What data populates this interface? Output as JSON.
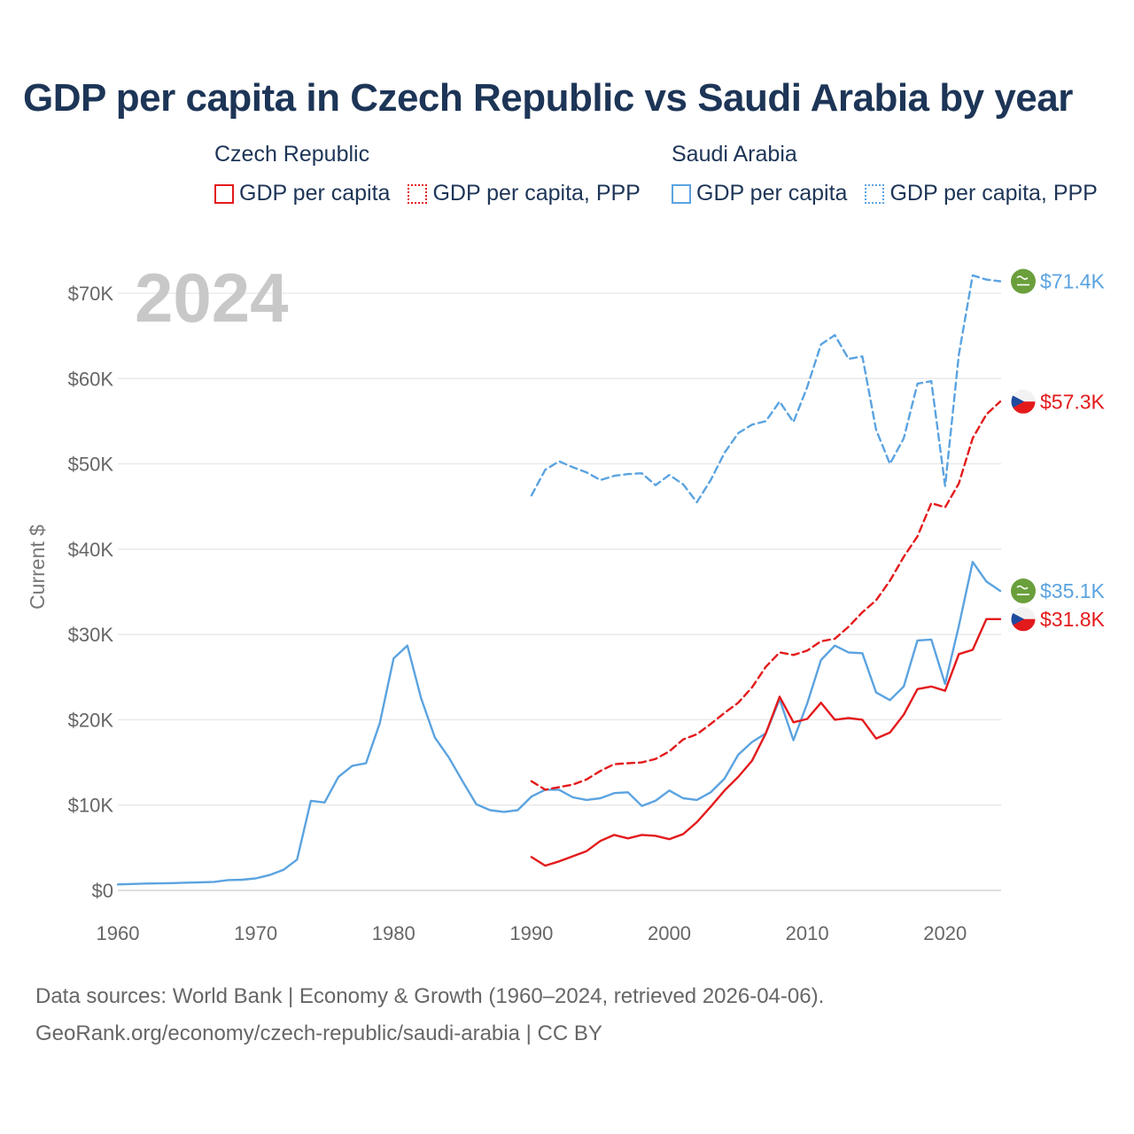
{
  "title": "GDP per capita in Czech Republic vs Saudi Arabia by year",
  "legend": {
    "groups": [
      {
        "title": "Czech Republic",
        "color": "#e31a1c",
        "items": [
          "GDP per capita",
          "GDP per capita, PPP"
        ]
      },
      {
        "title": "Saudi Arabia",
        "color": "#5ba3e0",
        "items": [
          "GDP per capita",
          "GDP per capita, PPP"
        ]
      }
    ]
  },
  "year_overlay": "2024",
  "sources": {
    "line1": "Data sources: World Bank | Economy & Growth (1960–2024, retrieved 2026-04-06).",
    "line2": "GeoRank.org/economy/czech-republic/saudi-arabia | CC BY"
  },
  "chart_data": {
    "type": "line",
    "title": "GDP per capita in Czech Republic vs Saudi Arabia by year",
    "xlabel": "",
    "ylabel": "Current $",
    "xlim": [
      1960,
      2024
    ],
    "ylim": [
      0,
      70000
    ],
    "grid": true,
    "x_ticks": [
      1960,
      1970,
      1980,
      1990,
      2000,
      2010,
      2020
    ],
    "x_tick_labels": [
      "1960",
      "1970",
      "1980",
      "1990",
      "2000",
      "2010",
      "2020"
    ],
    "y_ticks": [
      0,
      10000,
      20000,
      30000,
      40000,
      50000,
      60000,
      70000
    ],
    "y_tick_labels": [
      "$0",
      "$10K",
      "$20K",
      "$30K",
      "$40K",
      "$50K",
      "$60K",
      "$70K"
    ],
    "series": [
      {
        "name": "Saudi Arabia GDP per capita",
        "color": "#5ba3e0",
        "dash": "solid",
        "end_label": "$35.1K",
        "flag": "saudi-arabia",
        "x": [
          1960,
          1961,
          1962,
          1963,
          1964,
          1965,
          1966,
          1967,
          1968,
          1969,
          1970,
          1971,
          1972,
          1973,
          1974,
          1975,
          1976,
          1977,
          1978,
          1979,
          1980,
          1981,
          1982,
          1983,
          1984,
          1985,
          1986,
          1987,
          1988,
          1989,
          1990,
          1991,
          1992,
          1993,
          1994,
          1995,
          1996,
          1997,
          1998,
          1999,
          2000,
          2001,
          2002,
          2003,
          2004,
          2005,
          2006,
          2007,
          2008,
          2009,
          2010,
          2011,
          2012,
          2013,
          2014,
          2015,
          2016,
          2017,
          2018,
          2019,
          2020,
          2021,
          2022,
          2023,
          2024
        ],
        "values": [
          700,
          750,
          800,
          820,
          850,
          900,
          950,
          1000,
          1200,
          1250,
          1400,
          1800,
          2400,
          3600,
          10500,
          10300,
          13300,
          14600,
          14900,
          19600,
          27200,
          28700,
          22500,
          17900,
          15600,
          12800,
          10100,
          9400,
          9200,
          9400,
          11000,
          11800,
          11800,
          10900,
          10600,
          10800,
          11400,
          11500,
          9900,
          10500,
          11700,
          10800,
          10600,
          11500,
          13100,
          15900,
          17400,
          18400,
          22400,
          17600,
          21900,
          27000,
          28700,
          27900,
          27800,
          23200,
          22300,
          23900,
          29300,
          29400,
          24200,
          31000,
          38500,
          36200,
          35100
        ]
      },
      {
        "name": "Saudi Arabia GDP per capita, PPP",
        "color": "#5ba3e0",
        "dash": "dashed",
        "end_label": "$71.4K",
        "flag": "saudi-arabia",
        "x": [
          1990,
          1991,
          1992,
          1993,
          1994,
          1995,
          1996,
          1997,
          1998,
          1999,
          2000,
          2001,
          2002,
          2003,
          2004,
          2005,
          2006,
          2007,
          2008,
          2009,
          2010,
          2011,
          2012,
          2013,
          2014,
          2015,
          2016,
          2017,
          2018,
          2019,
          2020,
          2021,
          2022,
          2023,
          2024
        ],
        "values": [
          46300,
          49300,
          50300,
          49600,
          49000,
          48100,
          48600,
          48800,
          48900,
          47500,
          48700,
          47600,
          45500,
          48100,
          51300,
          53600,
          54600,
          55000,
          57300,
          54900,
          59000,
          64000,
          65100,
          62300,
          62600,
          54000,
          50000,
          53000,
          59400,
          59700,
          47400,
          62800,
          72100,
          71600,
          71400
        ]
      },
      {
        "name": "Czech Republic GDP per capita",
        "color": "#e31a1c",
        "dash": "solid",
        "end_label": "$31.8K",
        "flag": "czech-republic",
        "x": [
          1990,
          1991,
          1992,
          1993,
          1994,
          1995,
          1996,
          1997,
          1998,
          1999,
          2000,
          2001,
          2002,
          2003,
          2004,
          2005,
          2006,
          2007,
          2008,
          2009,
          2010,
          2011,
          2012,
          2013,
          2014,
          2015,
          2016,
          2017,
          2018,
          2019,
          2020,
          2021,
          2022,
          2023,
          2024
        ],
        "values": [
          3900,
          2900,
          3400,
          4000,
          4600,
          5800,
          6500,
          6100,
          6500,
          6400,
          6000,
          6600,
          8000,
          9800,
          11700,
          13300,
          15200,
          18400,
          22700,
          19700,
          20100,
          22000,
          20000,
          20200,
          20000,
          17800,
          18500,
          20600,
          23600,
          23900,
          23400,
          27700,
          28200,
          31800,
          31800
        ]
      },
      {
        "name": "Czech Republic GDP per capita, PPP",
        "color": "#e31a1c",
        "dash": "dashed",
        "end_label": "$57.3K",
        "flag": "czech-republic",
        "x": [
          1990,
          1991,
          1992,
          1993,
          1994,
          1995,
          1996,
          1997,
          1998,
          1999,
          2000,
          2001,
          2002,
          2003,
          2004,
          2005,
          2006,
          2007,
          2008,
          2009,
          2010,
          2011,
          2012,
          2013,
          2014,
          2015,
          2016,
          2017,
          2018,
          2019,
          2020,
          2021,
          2022,
          2023,
          2024
        ],
        "values": [
          12800,
          11800,
          12100,
          12400,
          13000,
          14000,
          14800,
          14900,
          15000,
          15400,
          16300,
          17700,
          18300,
          19500,
          20800,
          22000,
          23800,
          26200,
          27900,
          27600,
          28100,
          29200,
          29500,
          30900,
          32600,
          34000,
          36300,
          39100,
          41500,
          45400,
          44900,
          47700,
          53000,
          55800,
          57300
        ]
      }
    ]
  }
}
